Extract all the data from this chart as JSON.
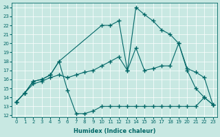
{
  "background_color": "#c8e8e2",
  "line_color": "#006666",
  "xlim": [
    -0.5,
    23.5
  ],
  "ylim": [
    11.8,
    24.5
  ],
  "xticks": [
    0,
    1,
    2,
    3,
    4,
    5,
    6,
    7,
    8,
    9,
    10,
    11,
    12,
    13,
    14,
    15,
    16,
    17,
    18,
    19,
    20,
    21,
    22,
    23
  ],
  "yticks": [
    12,
    13,
    14,
    15,
    16,
    17,
    18,
    19,
    20,
    21,
    22,
    23,
    24
  ],
  "xlabel": "Humidex (Indice chaleur)",
  "series": [
    {
      "x": [
        0,
        1,
        2,
        3,
        4,
        5,
        6,
        7,
        8,
        9,
        10,
        11,
        12,
        13,
        14,
        15,
        16,
        17,
        18,
        19,
        20,
        21,
        22,
        23
      ],
      "y": [
        13.5,
        14.5,
        15.8,
        16.0,
        16.5,
        18.0,
        14.8,
        12.2,
        12.2,
        12.5,
        13.0,
        13.0,
        13.0,
        13.0,
        13.0,
        13.0,
        13.0,
        13.0,
        13.0,
        13.0,
        13.0,
        13.0,
        14.0,
        13.2
      ]
    },
    {
      "x": [
        0,
        1,
        2,
        3,
        4,
        5,
        10,
        11,
        12,
        13,
        14,
        15,
        16,
        17,
        18,
        19,
        20,
        21,
        22,
        23
      ],
      "y": [
        13.5,
        14.5,
        15.8,
        16.0,
        16.5,
        18.0,
        22.0,
        22.0,
        22.5,
        17.0,
        24.0,
        23.2,
        22.5,
        21.5,
        21.0,
        20.0,
        17.0,
        15.0,
        14.0,
        13.2
      ]
    },
    {
      "x": [
        0,
        1,
        2,
        3,
        4,
        5,
        6,
        7,
        8,
        9,
        10,
        11,
        12,
        13,
        14,
        15,
        16,
        17,
        18,
        19,
        20,
        21,
        22,
        23
      ],
      "y": [
        13.5,
        14.5,
        15.5,
        15.8,
        16.2,
        16.5,
        16.2,
        16.5,
        16.8,
        17.0,
        17.5,
        18.0,
        18.5,
        17.0,
        19.5,
        17.0,
        17.2,
        17.5,
        17.5,
        20.0,
        17.2,
        16.8,
        16.2,
        13.2
      ]
    }
  ]
}
